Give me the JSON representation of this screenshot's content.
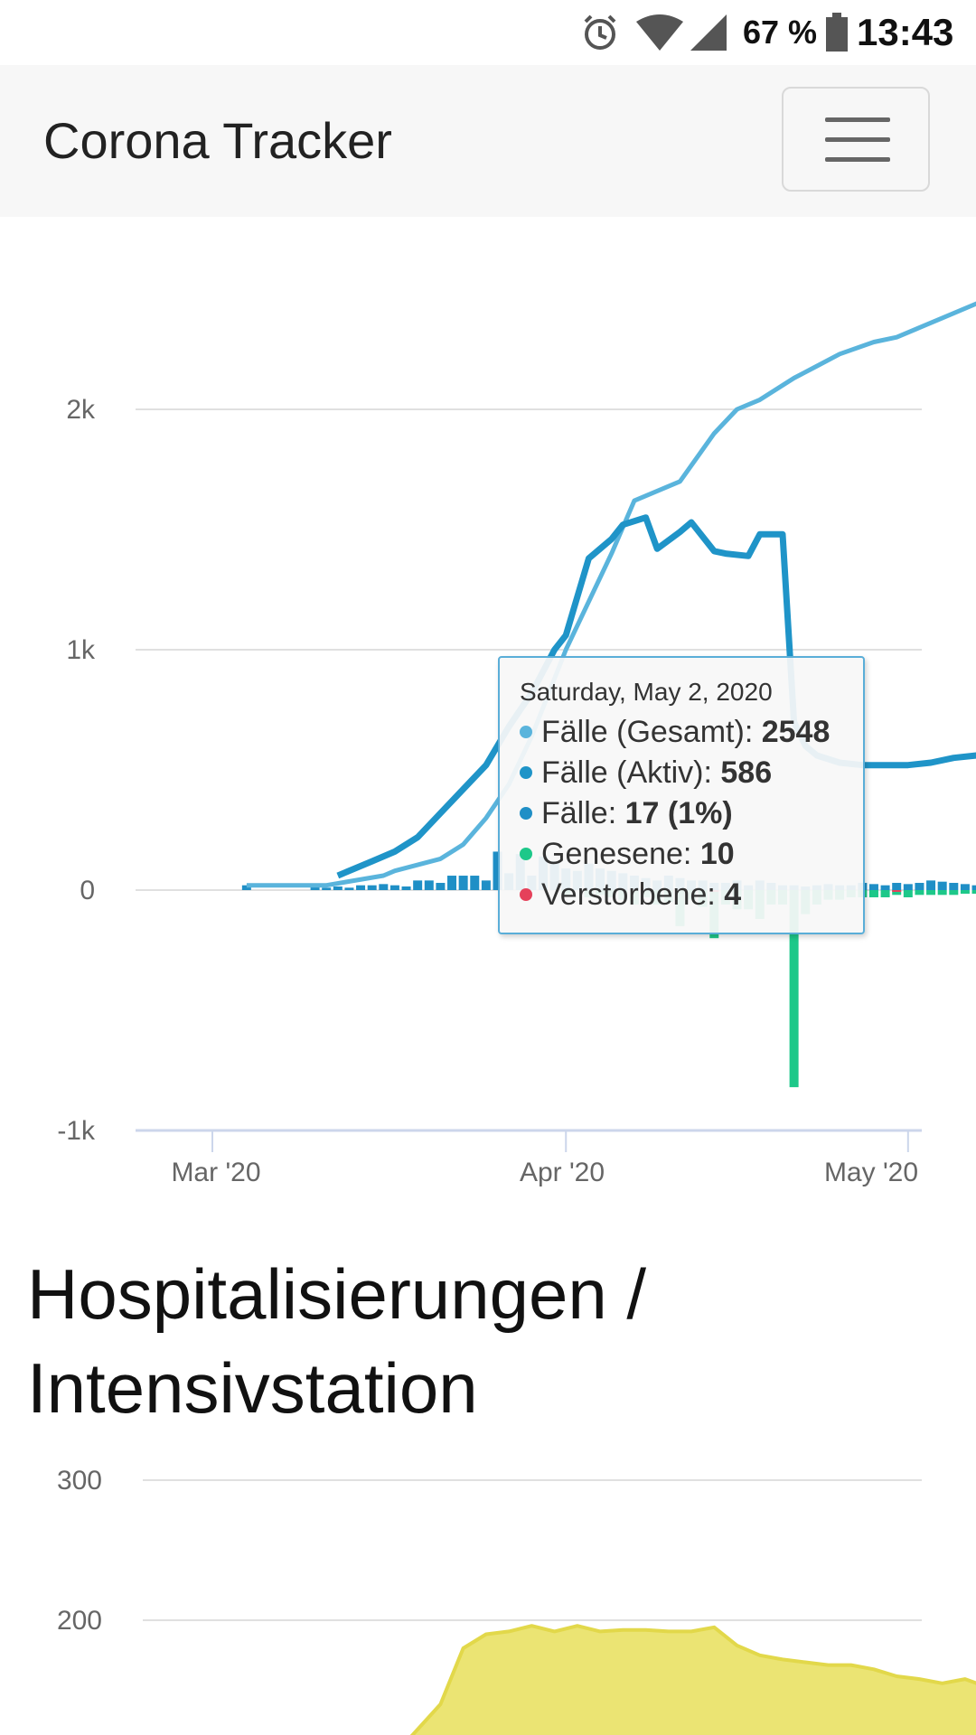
{
  "status_bar": {
    "battery_percent": "67 %",
    "time": "13:43",
    "icons": [
      "alarm-icon",
      "wifi-icon",
      "signal-icon",
      "battery-icon"
    ]
  },
  "navbar": {
    "brand": "Corona Tracker",
    "menu_icon": "hamburger-menu-icon"
  },
  "colors": {
    "cases_total": "#5ab4dc",
    "cases_active": "#1f94c8",
    "cases_new": "#1f8fc6",
    "recovered": "#1dc889",
    "deaths": "#e5415a",
    "hospital": "#e9e164",
    "grid": "#e0e0e0",
    "axis": "#ccd6eb"
  },
  "cases_chart": {
    "tooltip": {
      "date": "Saturday, May 2, 2020",
      "rows": [
        {
          "label": "Fälle (Gesamt)",
          "value": "2548"
        },
        {
          "label": "Fälle (Aktiv)",
          "value": "586"
        },
        {
          "label": "Fälle",
          "value": "17 (1%)"
        },
        {
          "label": "Genesene",
          "value": "10"
        },
        {
          "label": "Verstorbene",
          "value": "4"
        }
      ]
    }
  },
  "hospital_section": {
    "title": "Hospitalisierungen / Intensivstation"
  },
  "chart_data": [
    {
      "type": "line",
      "y_ticks": [
        2000,
        1000,
        0,
        -1000
      ],
      "y_tick_labels": [
        "2k",
        "1k",
        "0",
        "-1k"
      ],
      "x_tick_labels": [
        "Mar '20",
        "Apr '20",
        "May '20"
      ],
      "ylim": [
        -1000,
        2600
      ],
      "x_days": [
        3,
        5,
        10,
        15,
        16,
        20,
        22,
        24,
        26,
        28,
        31,
        35,
        37,
        41,
        44,
        46,
        48,
        51,
        53,
        55,
        58,
        60,
        62,
        64,
        67,
        69,
        72,
        74,
        76
      ],
      "series": [
        {
          "name": "Fälle (Gesamt)",
          "kind": "line",
          "values": [
            20,
            20,
            20,
            60,
            80,
            130,
            190,
            300,
            440,
            640,
            1000,
            1400,
            1620,
            1700,
            1900,
            2000,
            2040,
            2130,
            2180,
            2230,
            2280,
            2300,
            2340,
            2380,
            2440,
            2460,
            2500,
            2530,
            2548
          ]
        },
        {
          "name": "Fälle (Aktiv)",
          "kind": "line",
          "x_days": [
            11,
            14,
            16,
            18,
            20,
            22,
            24,
            26,
            28,
            30,
            31,
            33,
            35,
            36,
            38,
            39,
            41,
            42,
            44,
            45,
            47,
            48,
            50,
            51,
            52,
            53,
            55,
            57,
            59,
            61,
            63,
            65,
            67,
            69,
            71,
            72,
            74,
            75,
            76
          ],
          "values": [
            60,
            120,
            160,
            220,
            320,
            420,
            520,
            680,
            820,
            1000,
            1060,
            1380,
            1460,
            1520,
            1550,
            1420,
            1490,
            1530,
            1410,
            1400,
            1390,
            1480,
            1480,
            700,
            600,
            560,
            530,
            520,
            520,
            520,
            530,
            550,
            560,
            570,
            580,
            590,
            590,
            586,
            586
          ]
        },
        {
          "name": "Fälle",
          "kind": "bar",
          "x_days": [
            3,
            9,
            10,
            11,
            12,
            13,
            14,
            15,
            16,
            17,
            18,
            19,
            20,
            21,
            22,
            23,
            24,
            25,
            26,
            27,
            28,
            29,
            30,
            31,
            32,
            33,
            34,
            35,
            36,
            37,
            38,
            39,
            40,
            41,
            42,
            43,
            44,
            45,
            46,
            47,
            48,
            49,
            50,
            51,
            52,
            53,
            54,
            55,
            56,
            57,
            58,
            59,
            60,
            61,
            62,
            63,
            64,
            65,
            66,
            67,
            68,
            69,
            70,
            71,
            72,
            73,
            74,
            75,
            76
          ],
          "values": [
            20,
            15,
            10,
            15,
            10,
            20,
            20,
            25,
            20,
            15,
            40,
            40,
            30,
            60,
            60,
            60,
            40,
            160,
            70,
            150,
            60,
            140,
            120,
            90,
            80,
            110,
            90,
            80,
            70,
            60,
            50,
            40,
            60,
            50,
            40,
            40,
            30,
            30,
            40,
            20,
            40,
            30,
            20,
            20,
            15,
            20,
            25,
            20,
            20,
            30,
            25,
            20,
            30,
            25,
            30,
            40,
            35,
            30,
            25,
            20,
            30,
            25,
            20,
            30,
            40,
            20,
            40,
            30,
            17
          ]
        },
        {
          "name": "Genesene",
          "kind": "bar",
          "x_days": [
            31,
            33,
            34,
            35,
            36,
            37,
            38,
            39,
            40,
            41,
            42,
            43,
            44,
            45,
            46,
            47,
            48,
            49,
            50,
            51,
            52,
            53,
            54,
            55,
            56,
            57,
            58,
            59,
            60,
            61,
            62,
            63,
            64,
            65,
            66,
            67,
            68,
            69,
            70,
            71,
            72,
            73,
            74,
            75,
            76
          ],
          "values": [
            -20,
            -30,
            -20,
            -30,
            -40,
            -60,
            -30,
            -60,
            -50,
            -150,
            -40,
            -70,
            -200,
            -60,
            -80,
            -80,
            -120,
            -60,
            -60,
            -820,
            -100,
            -60,
            -40,
            -40,
            -30,
            -30,
            -30,
            -30,
            -20,
            -30,
            -20,
            -20,
            -20,
            -20,
            -15,
            -15,
            -20,
            -20,
            -15,
            -10,
            -15,
            -10,
            -15,
            -10,
            -10
          ]
        },
        {
          "name": "Verstorbene",
          "kind": "bar",
          "x_days": [
            44,
            60,
            76
          ],
          "values": [
            -5,
            -3,
            -4
          ]
        }
      ],
      "highlight": {
        "date": "Saturday, May 2, 2020",
        "total": 2548,
        "active": 586
      }
    },
    {
      "type": "area",
      "title": "Hospitalisierungen / Intensivstation",
      "y_ticks": [
        300,
        200
      ],
      "y_tick_labels": [
        "300",
        "200"
      ],
      "series": [
        {
          "name": "",
          "kind": "area",
          "x_days": [
            20,
            22,
            24,
            26,
            28,
            30,
            32,
            34,
            36,
            38,
            40,
            42,
            44,
            46,
            48,
            50,
            52,
            54,
            56,
            58,
            60,
            62,
            64,
            66,
            68,
            70,
            72,
            74,
            76
          ],
          "values": [
            140,
            180,
            190,
            192,
            196,
            192,
            196,
            192,
            193,
            193,
            192,
            192,
            195,
            182,
            175,
            172,
            170,
            168,
            168,
            165,
            160,
            158,
            155,
            158,
            152,
            150,
            148,
            145,
            140
          ]
        }
      ]
    }
  ]
}
